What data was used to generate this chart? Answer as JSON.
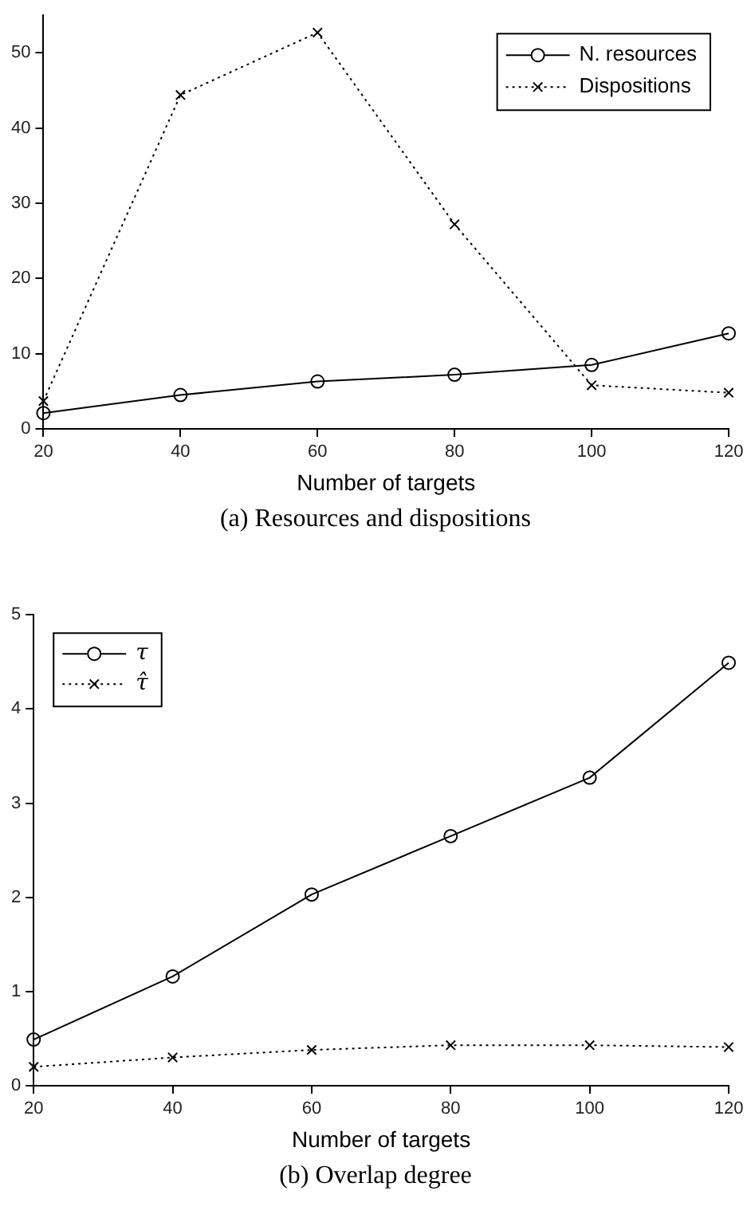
{
  "chart_data": [
    {
      "type": "line",
      "title": "(a) Resources and dispositions",
      "xlabel": "Number of targets",
      "x": [
        20,
        40,
        60,
        80,
        100,
        120
      ],
      "xlim": [
        20,
        120
      ],
      "xticks": [
        20,
        40,
        60,
        80,
        100,
        120
      ],
      "ylim": [
        0,
        55
      ],
      "yticks": [
        0,
        10,
        20,
        30,
        40,
        50
      ],
      "grid": false,
      "legend": "top right",
      "series": [
        {
          "name": "N. resources",
          "color": "#000000",
          "marker": "circle",
          "line_style": "solid",
          "values": [
            2.1,
            4.5,
            6.3,
            7.2,
            8.5,
            12.7
          ]
        },
        {
          "name": "Dispositions",
          "color": "#000000",
          "marker": "cross",
          "line_style": "dotted",
          "values": [
            3.7,
            44.4,
            52.7,
            27.2,
            5.8,
            4.8
          ]
        }
      ]
    },
    {
      "type": "line",
      "title": "(b) Overlap degree",
      "xlabel": "Number of targets",
      "x": [
        20,
        40,
        60,
        80,
        100,
        120
      ],
      "xlim": [
        20,
        120
      ],
      "xticks": [
        20,
        40,
        60,
        80,
        100,
        120
      ],
      "ylim": [
        0,
        5
      ],
      "yticks": [
        0,
        1,
        2,
        3,
        4,
        5
      ],
      "grid": false,
      "legend": "top left",
      "series": [
        {
          "name": "τ",
          "color": "#000000",
          "marker": "circle",
          "line_style": "solid",
          "values": [
            0.49,
            1.16,
            2.03,
            2.65,
            3.27,
            4.49
          ]
        },
        {
          "name": "τ̂",
          "color": "#000000",
          "marker": "cross",
          "line_style": "dotted",
          "values": [
            0.2,
            0.3,
            0.38,
            0.43,
            0.43,
            0.41
          ]
        }
      ]
    }
  ]
}
